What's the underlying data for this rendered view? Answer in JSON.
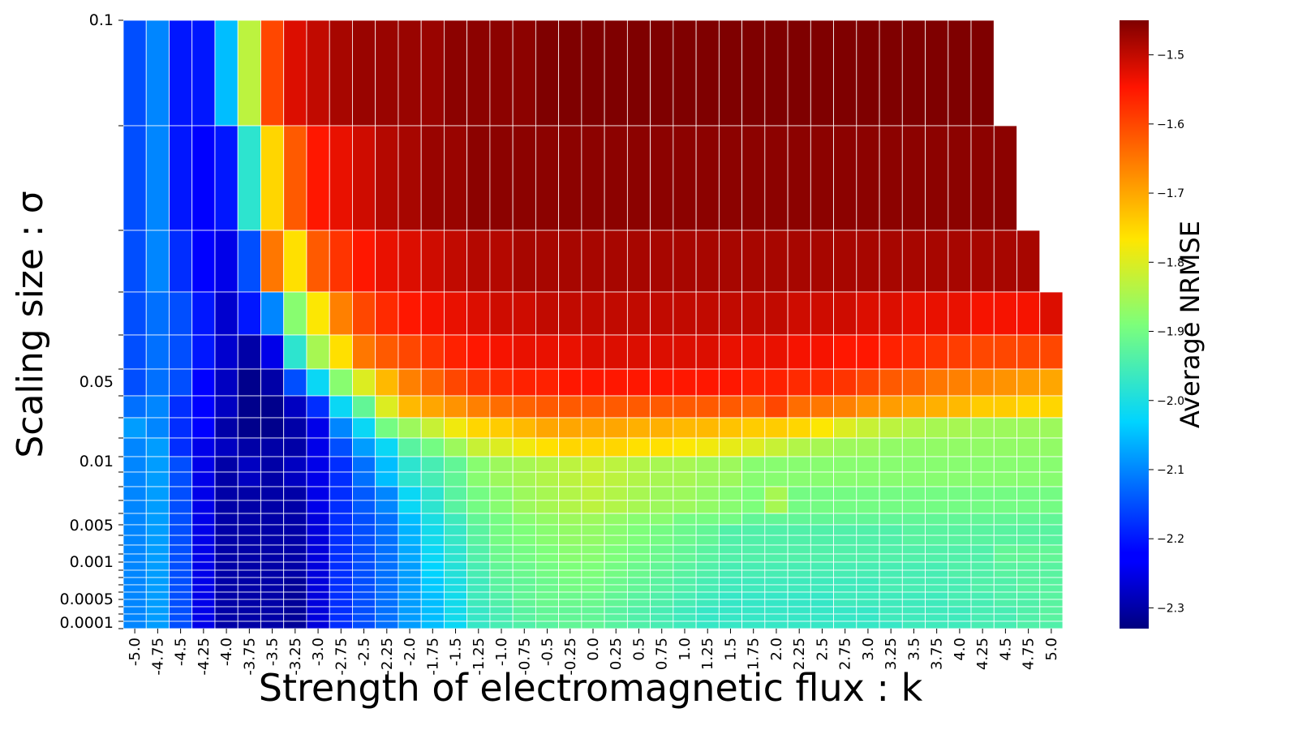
{
  "chart_data": {
    "type": "heatmap",
    "xlabel": "Strength of electromagnetic flux : k",
    "ylabel": "Scaling size : σ",
    "colorbar_label": "Average NRMSE",
    "colormap": "jet",
    "value_range": [
      -2.33,
      -1.45
    ],
    "x_categories": [
      "-5.0",
      "-4.75",
      "-4.5",
      "-4.25",
      "-4.0",
      "-3.75",
      "-3.5",
      "-3.25",
      "-3.0",
      "-2.75",
      "-2.5",
      "-2.25",
      "-2.0",
      "-1.75",
      "-1.5",
      "-1.25",
      "-1.0",
      "-0.75",
      "-0.5",
      "-0.25",
      "0.0",
      "0.25",
      "0.5",
      "0.75",
      "1.0",
      "1.25",
      "1.5",
      "1.75",
      "2.0",
      "2.25",
      "2.5",
      "2.75",
      "3.0",
      "3.25",
      "3.5",
      "3.75",
      "4.0",
      "4.25",
      "4.5",
      "4.75",
      "5.0"
    ],
    "y_tick_labels": [
      "0.1",
      "0.05",
      "0.01",
      "0.005",
      "0.001",
      "0.0005",
      "0.0001"
    ],
    "colorbar_ticks": [
      -1.5,
      -1.6,
      -1.7,
      -1.8,
      -1.9,
      -2.0,
      -2.1,
      -2.2,
      -2.3
    ],
    "colorbar_tick_labels": [
      "−1.5",
      "−1.6",
      "−1.7",
      "−1.8",
      "−1.9",
      "−2.0",
      "−2.1",
      "−2.2",
      "−2.3"
    ],
    "grid_lines": true,
    "rows_top_to_bottom": [
      {
        "sigma_band": "0.1",
        "values": [
          -2.15,
          -2.1,
          -2.2,
          -2.2,
          -2.05,
          -1.83,
          -1.6,
          -1.52,
          -1.5,
          -1.48,
          -1.47,
          -1.47,
          -1.47,
          -1.47,
          -1.46,
          -1.46,
          -1.46,
          -1.46,
          -1.45,
          -1.45,
          -1.45,
          -1.45,
          -1.45,
          -1.45,
          -1.45,
          -1.45,
          -1.45,
          -1.45,
          -1.45,
          -1.45,
          -1.45,
          -1.45,
          -1.45,
          -1.45,
          -1.45,
          -1.45,
          -1.45,
          -1.45,
          null,
          null,
          null
        ]
      },
      {
        "sigma_band": "",
        "values": [
          -2.15,
          -2.1,
          -2.2,
          -2.22,
          -2.2,
          -1.98,
          -1.75,
          -1.62,
          -1.55,
          -1.53,
          -1.51,
          -1.49,
          -1.48,
          -1.47,
          -1.47,
          -1.46,
          -1.46,
          -1.46,
          -1.46,
          -1.46,
          -1.46,
          -1.46,
          -1.46,
          -1.46,
          -1.46,
          -1.46,
          -1.46,
          -1.46,
          -1.46,
          -1.46,
          -1.46,
          -1.46,
          -1.46,
          -1.46,
          -1.46,
          -1.46,
          -1.46,
          -1.46,
          -1.46,
          null,
          null
        ]
      },
      {
        "sigma_band": "",
        "values": [
          -2.15,
          -2.1,
          -2.18,
          -2.22,
          -2.25,
          -2.15,
          -1.65,
          -1.76,
          -1.62,
          -1.58,
          -1.55,
          -1.53,
          -1.52,
          -1.51,
          -1.5,
          -1.49,
          -1.49,
          -1.48,
          -1.48,
          -1.48,
          -1.48,
          -1.48,
          -1.48,
          -1.48,
          -1.48,
          -1.48,
          -1.48,
          -1.48,
          -1.48,
          -1.48,
          -1.48,
          -1.48,
          -1.48,
          -1.48,
          -1.48,
          -1.48,
          -1.48,
          -1.48,
          -1.48,
          -1.48,
          null
        ]
      },
      {
        "sigma_band": "",
        "values": [
          -2.15,
          -2.12,
          -2.15,
          -2.2,
          -2.27,
          -2.2,
          -2.1,
          -1.88,
          -1.77,
          -1.66,
          -1.6,
          -1.57,
          -1.55,
          -1.54,
          -1.53,
          -1.52,
          -1.51,
          -1.51,
          -1.5,
          -1.5,
          -1.5,
          -1.5,
          -1.5,
          -1.5,
          -1.5,
          -1.5,
          -1.5,
          -1.5,
          -1.5,
          -1.51,
          -1.51,
          -1.51,
          -1.52,
          -1.52,
          -1.53,
          -1.53,
          -1.53,
          -1.54,
          -1.54,
          -1.54,
          -1.52
        ]
      },
      {
        "sigma_band": "",
        "values": [
          -2.15,
          -2.12,
          -2.15,
          -2.2,
          -2.27,
          -2.3,
          -2.25,
          -1.98,
          -1.85,
          -1.76,
          -1.65,
          -1.62,
          -1.6,
          -1.58,
          -1.56,
          -1.55,
          -1.54,
          -1.53,
          -1.53,
          -1.53,
          -1.52,
          -1.52,
          -1.52,
          -1.52,
          -1.52,
          -1.52,
          -1.53,
          -1.53,
          -1.53,
          -1.54,
          -1.54,
          -1.55,
          -1.55,
          -1.56,
          -1.57,
          -1.58,
          -1.59,
          -1.6,
          -1.6,
          -1.6,
          -1.6
        ]
      },
      {
        "sigma_band": "0.05",
        "values": [
          -2.15,
          -2.12,
          -2.15,
          -2.22,
          -2.28,
          -2.32,
          -2.3,
          -2.15,
          -2.02,
          -1.88,
          -1.8,
          -1.72,
          -1.66,
          -1.63,
          -1.6,
          -1.58,
          -1.57,
          -1.56,
          -1.56,
          -1.55,
          -1.55,
          -1.55,
          -1.55,
          -1.55,
          -1.55,
          -1.55,
          -1.55,
          -1.56,
          -1.56,
          -1.57,
          -1.57,
          -1.58,
          -1.6,
          -1.62,
          -1.63,
          -1.65,
          -1.66,
          -1.67,
          -1.68,
          -1.69,
          -1.7
        ]
      },
      {
        "sigma_band": "",
        "values": [
          -2.12,
          -2.1,
          -2.18,
          -2.22,
          -2.28,
          -2.32,
          -2.32,
          -2.28,
          -2.18,
          -2.02,
          -1.92,
          -1.8,
          -1.72,
          -1.7,
          -1.68,
          -1.66,
          -1.64,
          -1.63,
          -1.62,
          -1.62,
          -1.62,
          -1.62,
          -1.62,
          -1.62,
          -1.62,
          -1.62,
          -1.62,
          -1.63,
          -1.6,
          -1.64,
          -1.65,
          -1.66,
          -1.68,
          -1.69,
          -1.7,
          -1.71,
          -1.72,
          -1.74,
          -1.74,
          -1.75,
          -1.75
        ]
      },
      {
        "sigma_band": "",
        "values": [
          -2.08,
          -2.1,
          -2.18,
          -2.22,
          -2.3,
          -2.32,
          -2.32,
          -2.3,
          -2.25,
          -2.1,
          -2.02,
          -1.9,
          -1.86,
          -1.82,
          -1.78,
          -1.75,
          -1.74,
          -1.72,
          -1.7,
          -1.7,
          -1.7,
          -1.7,
          -1.71,
          -1.71,
          -1.72,
          -1.72,
          -1.73,
          -1.74,
          -1.74,
          -1.75,
          -1.77,
          -1.8,
          -1.82,
          -1.83,
          -1.84,
          -1.85,
          -1.85,
          -1.86,
          -1.86,
          -1.86,
          -1.86
        ]
      },
      {
        "sigma_band": "",
        "values": [
          -2.1,
          -2.08,
          -2.18,
          -2.25,
          -2.28,
          -2.3,
          -2.3,
          -2.3,
          -2.25,
          -2.15,
          -2.08,
          -2.02,
          -1.93,
          -1.9,
          -1.86,
          -1.82,
          -1.8,
          -1.78,
          -1.76,
          -1.75,
          -1.75,
          -1.75,
          -1.76,
          -1.76,
          -1.77,
          -1.78,
          -1.79,
          -1.8,
          -1.82,
          -1.84,
          -1.85,
          -1.86,
          -1.86,
          -1.87,
          -1.87,
          -1.87,
          -1.87,
          -1.87,
          -1.87,
          -1.87,
          -1.87
        ]
      },
      {
        "sigma_band": "0.01",
        "values": [
          -2.1,
          -2.08,
          -2.15,
          -2.25,
          -2.3,
          -2.28,
          -2.3,
          -2.28,
          -2.25,
          -2.18,
          -2.12,
          -2.05,
          -1.98,
          -1.95,
          -1.92,
          -1.88,
          -1.86,
          -1.85,
          -1.84,
          -1.83,
          -1.82,
          -1.83,
          -1.84,
          -1.85,
          -1.85,
          -1.86,
          -1.86,
          -1.88,
          -1.88,
          -1.88,
          -1.88,
          -1.88,
          -1.88,
          -1.88,
          -1.88,
          -1.88,
          -1.88,
          -1.88,
          -1.88,
          -1.88,
          -1.88
        ]
      },
      {
        "sigma_band": "",
        "values": [
          -2.1,
          -2.08,
          -2.15,
          -2.25,
          -2.3,
          -2.3,
          -2.3,
          -2.3,
          -2.25,
          -2.18,
          -2.14,
          -2.1,
          -2.02,
          -1.98,
          -1.93,
          -1.9,
          -1.88,
          -1.86,
          -1.85,
          -1.84,
          -1.83,
          -1.84,
          -1.85,
          -1.86,
          -1.86,
          -1.87,
          -1.88,
          -1.89,
          -1.85,
          -1.9,
          -1.9,
          -1.9,
          -1.9,
          -1.9,
          -1.9,
          -1.9,
          -1.9,
          -1.9,
          -1.9,
          -1.9,
          -1.9
        ]
      },
      {
        "sigma_band": "",
        "values": [
          -2.1,
          -2.08,
          -2.15,
          -2.25,
          -2.3,
          -2.3,
          -2.3,
          -2.3,
          -2.26,
          -2.18,
          -2.15,
          -2.12,
          -2.05,
          -2.0,
          -1.96,
          -1.92,
          -1.9,
          -1.88,
          -1.87,
          -1.86,
          -1.86,
          -1.87,
          -1.88,
          -1.88,
          -1.9,
          -1.9,
          -1.9,
          -1.92,
          -1.92,
          -1.92,
          -1.92,
          -1.92,
          -1.92,
          -1.92,
          -1.92,
          -1.92,
          -1.92,
          -1.92,
          -1.92,
          -1.92,
          -1.92
        ]
      },
      {
        "sigma_band": "",
        "values": [
          -2.1,
          -2.08,
          -2.15,
          -2.25,
          -2.3,
          -2.3,
          -2.3,
          -2.3,
          -2.26,
          -2.18,
          -2.15,
          -2.12,
          -2.06,
          -2.01,
          -1.97,
          -1.93,
          -1.9,
          -1.89,
          -1.88,
          -1.87,
          -1.87,
          -1.88,
          -1.89,
          -1.9,
          -1.91,
          -1.92,
          -1.94,
          -1.94,
          -1.94,
          -1.94,
          -1.94,
          -1.94,
          -1.94,
          -1.94,
          -1.93,
          -1.93,
          -1.93,
          -1.93,
          -1.93,
          -1.93,
          -1.93
        ]
      },
      {
        "sigma_band": "0.005",
        "values": [
          -2.1,
          -2.08,
          -2.15,
          -2.25,
          -2.3,
          -2.3,
          -2.3,
          -2.3,
          -2.26,
          -2.18,
          -2.15,
          -2.12,
          -2.07,
          -2.02,
          -1.98,
          -1.94,
          -1.91,
          -1.9,
          -1.89,
          -1.88,
          -1.88,
          -1.89,
          -1.9,
          -1.91,
          -1.92,
          -1.93,
          -1.94,
          -1.94,
          -1.94,
          -1.94,
          -1.94,
          -1.94,
          -1.94,
          -1.94,
          -1.94,
          -1.94,
          -1.94,
          -1.94,
          -1.92,
          -1.92,
          -1.92
        ]
      },
      {
        "sigma_band": "",
        "values": [
          -2.1,
          -2.08,
          -2.15,
          -2.25,
          -2.3,
          -2.3,
          -2.3,
          -2.3,
          -2.26,
          -2.18,
          -2.15,
          -2.12,
          -2.08,
          -2.03,
          -1.99,
          -1.95,
          -1.92,
          -1.91,
          -1.9,
          -1.89,
          -1.89,
          -1.9,
          -1.91,
          -1.92,
          -1.93,
          -1.94,
          -1.95,
          -1.95,
          -1.95,
          -1.95,
          -1.95,
          -1.95,
          -1.95,
          -1.95,
          -1.95,
          -1.95,
          -1.94,
          -1.94,
          -1.93,
          -1.93,
          -1.93
        ]
      },
      {
        "sigma_band": "0.001",
        "values": [
          -2.1,
          -2.08,
          -2.15,
          -2.25,
          -2.3,
          -2.3,
          -2.3,
          -2.31,
          -2.26,
          -2.18,
          -2.15,
          -2.12,
          -2.08,
          -2.04,
          -2.0,
          -1.96,
          -1.93,
          -1.92,
          -1.91,
          -1.9,
          -1.9,
          -1.91,
          -1.92,
          -1.93,
          -1.94,
          -1.95,
          -1.96,
          -1.96,
          -1.96,
          -1.96,
          -1.96,
          -1.96,
          -1.96,
          -1.95,
          -1.95,
          -1.95,
          -1.95,
          -1.94,
          -1.94,
          -1.93,
          -1.93
        ]
      },
      {
        "sigma_band": "",
        "values": [
          -2.1,
          -2.08,
          -2.15,
          -2.25,
          -2.3,
          -2.3,
          -2.3,
          -2.31,
          -2.26,
          -2.18,
          -2.15,
          -2.12,
          -2.08,
          -2.05,
          -2.01,
          -1.96,
          -1.94,
          -1.92,
          -1.91,
          -1.91,
          -1.91,
          -1.92,
          -1.93,
          -1.94,
          -1.95,
          -1.96,
          -1.97,
          -1.97,
          -1.97,
          -1.97,
          -1.97,
          -1.96,
          -1.96,
          -1.96,
          -1.96,
          -1.96,
          -1.95,
          -1.95,
          -1.94,
          -1.94,
          -1.93
        ]
      },
      {
        "sigma_band": "0.0005",
        "values": [
          -2.1,
          -2.08,
          -2.15,
          -2.25,
          -2.3,
          -2.3,
          -2.3,
          -2.31,
          -2.26,
          -2.18,
          -2.15,
          -2.12,
          -2.08,
          -2.05,
          -2.01,
          -1.97,
          -1.95,
          -1.93,
          -1.92,
          -1.92,
          -1.92,
          -1.93,
          -1.94,
          -1.95,
          -1.96,
          -1.97,
          -1.97,
          -1.97,
          -1.97,
          -1.97,
          -1.97,
          -1.97,
          -1.97,
          -1.96,
          -1.96,
          -1.96,
          -1.96,
          -1.95,
          -1.95,
          -1.94,
          -1.93
        ]
      },
      {
        "sigma_band": "0.0001",
        "values": [
          -2.1,
          -2.08,
          -2.15,
          -2.25,
          -2.3,
          -2.3,
          -2.3,
          -2.31,
          -2.26,
          -2.18,
          -2.15,
          -2.12,
          -2.08,
          -2.05,
          -2.02,
          -1.97,
          -1.95,
          -1.94,
          -1.93,
          -1.92,
          -1.92,
          -1.93,
          -1.94,
          -1.95,
          -1.96,
          -1.97,
          -1.97,
          -1.97,
          -1.97,
          -1.97,
          -1.97,
          -1.97,
          -1.97,
          -1.97,
          -1.96,
          -1.96,
          -1.96,
          -1.95,
          -1.95,
          -1.94,
          -1.94
        ]
      }
    ]
  }
}
